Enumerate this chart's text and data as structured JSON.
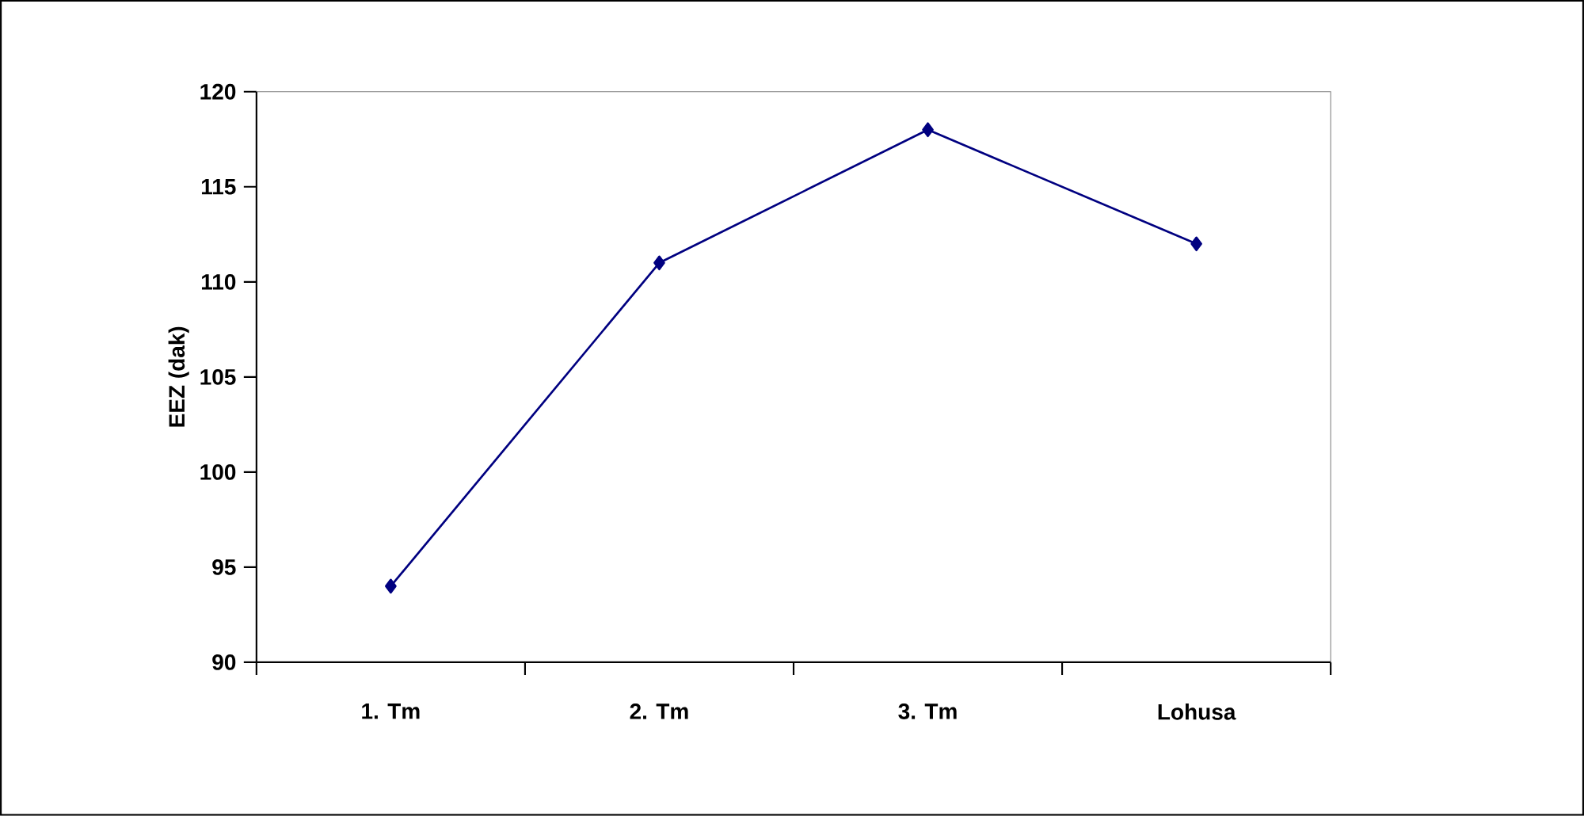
{
  "chart_data": {
    "type": "line",
    "ylabel": "EEZ (dak)",
    "categories": [
      "1. Tm",
      "2. Tm",
      "3. Tm",
      "Lohusa"
    ],
    "series": [
      {
        "color": "#000080",
        "values": [
          94,
          111,
          118,
          112
        ]
      }
    ],
    "ylim": [
      90,
      120
    ],
    "yticks": [
      90,
      95,
      100,
      105,
      110,
      115,
      120
    ],
    "grid": false,
    "marker": "diamond",
    "line_style": "solid"
  }
}
